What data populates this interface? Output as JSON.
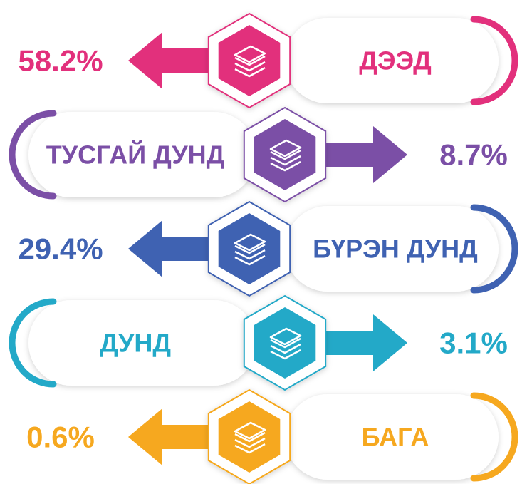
{
  "items": [
    {
      "label": "ДЭЭД",
      "value": "58.2%",
      "color": "#e2307c"
    },
    {
      "label": "ТУСГАЙ ДУНД",
      "value": "8.7%",
      "color": "#7b4fa6"
    },
    {
      "label": "БҮРЭН ДУНД",
      "value": "29.4%",
      "color": "#3f62b2"
    },
    {
      "label": "ДУНД",
      "value": "3.1%",
      "color": "#23a9c8"
    },
    {
      "label": "БАГА",
      "value": "0.6%",
      "color": "#f6a81f"
    }
  ]
}
